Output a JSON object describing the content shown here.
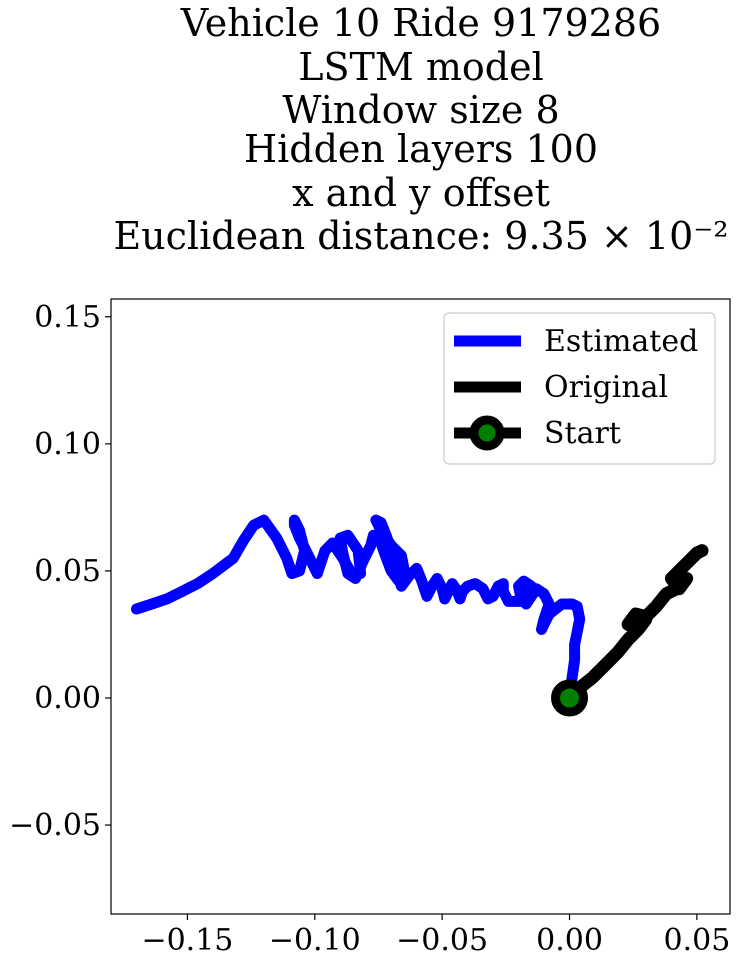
{
  "chart_data": {
    "type": "line",
    "title_lines": [
      "Vehicle 10 Ride 9179286",
      "LSTM model",
      "Window size 8",
      "Hidden layers 100",
      "x and y offset",
      "Euclidean distance: 9.35 × 10⁻²"
    ],
    "xlabel": "",
    "ylabel": "",
    "xlim": [
      -0.18,
      0.063
    ],
    "ylim": [
      -0.085,
      0.157
    ],
    "x_ticks": [
      -0.15,
      -0.1,
      -0.05,
      0.0,
      0.05
    ],
    "x_tick_labels": [
      "−0.15",
      "−0.10",
      "−0.05",
      "0.00",
      "0.05"
    ],
    "y_ticks": [
      -0.05,
      0.0,
      0.05,
      0.1,
      0.15
    ],
    "y_tick_labels": [
      "−0.05",
      "0.00",
      "0.05",
      "0.10",
      "0.15"
    ],
    "grid": false,
    "legend_position": "top-right",
    "series": [
      {
        "name": "Estimated",
        "color": "#0000ff",
        "x": [
          0.0,
          0.001,
          0.002,
          0.002,
          0.003,
          0.004,
          0.003,
          0.001,
          -0.003,
          -0.008,
          -0.011,
          -0.01,
          -0.008,
          -0.01,
          -0.013,
          -0.015,
          -0.017,
          -0.019,
          -0.02,
          -0.018,
          -0.015,
          -0.019,
          -0.024,
          -0.026,
          -0.026,
          -0.028,
          -0.03,
          -0.032,
          -0.034,
          -0.037,
          -0.04,
          -0.042,
          -0.043,
          -0.044,
          -0.046,
          -0.047,
          -0.049,
          -0.05,
          -0.052,
          -0.054,
          -0.056,
          -0.058,
          -0.06,
          -0.063,
          -0.066,
          -0.068,
          -0.07,
          -0.072,
          -0.074,
          -0.076,
          -0.074,
          -0.07,
          -0.066,
          -0.065,
          -0.067,
          -0.07,
          -0.073,
          -0.075,
          -0.077,
          -0.078,
          -0.081,
          -0.084,
          -0.087,
          -0.089,
          -0.09,
          -0.087,
          -0.083,
          -0.082,
          -0.085,
          -0.089,
          -0.093,
          -0.096,
          -0.098,
          -0.099,
          -0.102,
          -0.106,
          -0.108,
          -0.108,
          -0.106,
          -0.104,
          -0.106,
          -0.109,
          -0.111,
          -0.115,
          -0.12,
          -0.124,
          -0.128,
          -0.132,
          -0.136,
          -0.14,
          -0.146,
          -0.152,
          -0.158,
          -0.164,
          -0.17
        ],
        "y": [
          0.0,
          0.008,
          0.015,
          0.021,
          0.026,
          0.031,
          0.036,
          0.037,
          0.037,
          0.033,
          0.027,
          0.031,
          0.037,
          0.041,
          0.043,
          0.04,
          0.037,
          0.039,
          0.044,
          0.046,
          0.044,
          0.038,
          0.038,
          0.042,
          0.045,
          0.044,
          0.04,
          0.039,
          0.043,
          0.045,
          0.044,
          0.042,
          0.039,
          0.042,
          0.045,
          0.043,
          0.039,
          0.043,
          0.047,
          0.044,
          0.04,
          0.046,
          0.051,
          0.048,
          0.044,
          0.05,
          0.058,
          0.064,
          0.069,
          0.07,
          0.066,
          0.06,
          0.056,
          0.051,
          0.046,
          0.05,
          0.058,
          0.064,
          0.064,
          0.06,
          0.054,
          0.047,
          0.049,
          0.057,
          0.063,
          0.064,
          0.058,
          0.049,
          0.048,
          0.055,
          0.061,
          0.058,
          0.052,
          0.049,
          0.055,
          0.063,
          0.068,
          0.07,
          0.066,
          0.058,
          0.05,
          0.049,
          0.055,
          0.063,
          0.07,
          0.068,
          0.062,
          0.055,
          0.052,
          0.049,
          0.045,
          0.042,
          0.039,
          0.037,
          0.035
        ]
      },
      {
        "name": "Original",
        "color": "#000000",
        "x": [
          0.0,
          0.004,
          0.009,
          0.014,
          0.019,
          0.023,
          0.027,
          0.03,
          0.027,
          0.023,
          0.026,
          0.03,
          0.034,
          0.038,
          0.042,
          0.046,
          0.043,
          0.04,
          0.044,
          0.048,
          0.05,
          0.052
        ],
        "y": [
          0.0,
          0.004,
          0.008,
          0.013,
          0.018,
          0.023,
          0.027,
          0.031,
          0.027,
          0.029,
          0.033,
          0.032,
          0.036,
          0.041,
          0.043,
          0.047,
          0.043,
          0.047,
          0.051,
          0.055,
          0.057,
          0.058
        ]
      }
    ],
    "markers": [
      {
        "name": "Start",
        "x": 0.0,
        "y": 0.0,
        "edge_color": "#000000",
        "face_color": "#008000"
      }
    ]
  }
}
